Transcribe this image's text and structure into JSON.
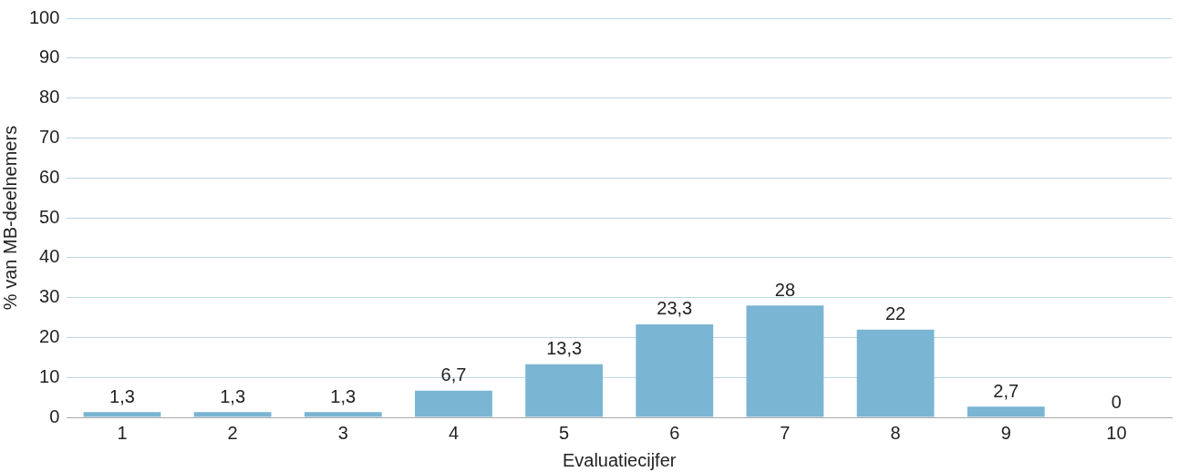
{
  "chart_data": {
    "type": "bar",
    "xlabel": "Evaluatiecijfer",
    "ylabel": "% van MB-deelnemers",
    "categories": [
      "1",
      "2",
      "3",
      "4",
      "5",
      "6",
      "7",
      "8",
      "9",
      "10"
    ],
    "values": [
      1.3,
      1.3,
      1.3,
      6.7,
      13.3,
      23.3,
      28,
      22,
      2.7,
      0
    ],
    "value_labels": [
      "1,3",
      "1,3",
      "1,3",
      "6,7",
      "13,3",
      "23,3",
      "28",
      "22",
      "2,7",
      "0"
    ],
    "color": "#7ab5d3",
    "ylim": [
      0,
      100
    ],
    "yticks": [
      0,
      10,
      20,
      30,
      40,
      50,
      60,
      70,
      80,
      90,
      100
    ],
    "grid": "y"
  }
}
